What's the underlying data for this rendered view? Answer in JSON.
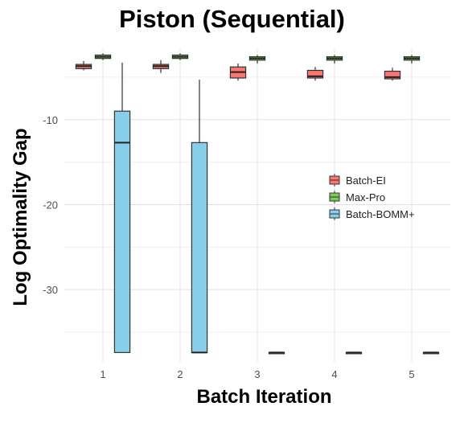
{
  "chart_data": {
    "type": "box",
    "title": "Piston (Sequential)",
    "xlabel": "Batch Iteration",
    "ylabel": "Log Optimality Gap",
    "categories": [
      "1",
      "2",
      "3",
      "4",
      "5"
    ],
    "ylim": [
      -38.5,
      -1.6
    ],
    "y_ticks": [
      -10,
      -20,
      -30
    ],
    "grid": true,
    "legend_position": "right",
    "series": [
      {
        "name": "Batch-EI",
        "color": "#F8766D",
        "boxes": [
          {
            "min": -4.2,
            "q1": -4.0,
            "median": -3.7,
            "q3": -3.5,
            "max": -3.1
          },
          {
            "min": -4.5,
            "q1": -4.0,
            "median": -3.7,
            "q3": -3.5,
            "max": -3.0
          },
          {
            "min": -5.4,
            "q1": -5.1,
            "median": -4.4,
            "q3": -3.8,
            "max": -3.4
          },
          {
            "min": -5.4,
            "q1": -5.1,
            "median": -4.9,
            "q3": -4.2,
            "max": -3.8
          },
          {
            "min": -5.4,
            "q1": -5.2,
            "median": -5.0,
            "q3": -4.3,
            "max": -3.9
          }
        ]
      },
      {
        "name": "Max-Pro",
        "color": "#7CCB5B",
        "boxes": [
          {
            "min": -3.0,
            "q1": -2.8,
            "median": -2.6,
            "q3": -2.4,
            "max": -2.2
          },
          {
            "min": -3.0,
            "q1": -2.8,
            "median": -2.6,
            "q3": -2.4,
            "max": -2.2
          },
          {
            "min": -3.4,
            "q1": -3.0,
            "median": -2.8,
            "q3": -2.6,
            "max": -2.4
          },
          {
            "min": -3.4,
            "q1": -3.0,
            "median": -2.8,
            "q3": -2.6,
            "max": -2.4
          },
          {
            "min": -3.4,
            "q1": -3.0,
            "median": -2.8,
            "q3": -2.6,
            "max": -2.4
          }
        ]
      },
      {
        "name": "Batch-BOMM+",
        "color": "#87CEEB",
        "boxes": [
          {
            "min": -37.4,
            "q1": -37.4,
            "median": -12.7,
            "q3": -9.0,
            "max": -3.3
          },
          {
            "min": -37.4,
            "q1": -37.4,
            "median": -37.4,
            "q3": -12.7,
            "max": -5.3
          },
          {
            "min": -37.4,
            "q1": -37.4,
            "median": -37.4,
            "q3": -37.4,
            "max": -37.4
          },
          {
            "min": -37.4,
            "q1": -37.4,
            "median": -37.4,
            "q3": -37.4,
            "max": -37.4
          },
          {
            "min": -37.4,
            "q1": -37.4,
            "median": -37.4,
            "q3": -37.4,
            "max": -37.4
          }
        ]
      }
    ]
  }
}
